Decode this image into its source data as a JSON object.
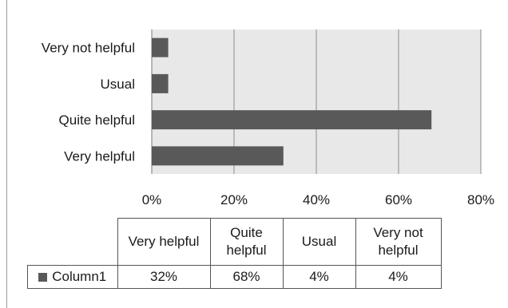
{
  "chart_data": {
    "type": "bar",
    "orientation": "horizontal",
    "categories": [
      "Very helpful",
      "Quite helpful",
      "Usual",
      "Very not helpful"
    ],
    "series": [
      {
        "name": "Column1",
        "values": [
          32,
          68,
          4,
          4
        ]
      }
    ],
    "xlim": [
      0,
      80
    ],
    "xticks": [
      "0%",
      "20%",
      "40%",
      "60%",
      "80%"
    ],
    "grid": true,
    "bar_color": "#595959",
    "plot_background": "#e8e8e8",
    "data_table": {
      "headers": [
        "Very helpful",
        "Quite helpful",
        "Usual",
        "Very not helpful"
      ],
      "row_label": "Column1",
      "cells": [
        "32%",
        "68%",
        "4%",
        "4%"
      ]
    }
  }
}
